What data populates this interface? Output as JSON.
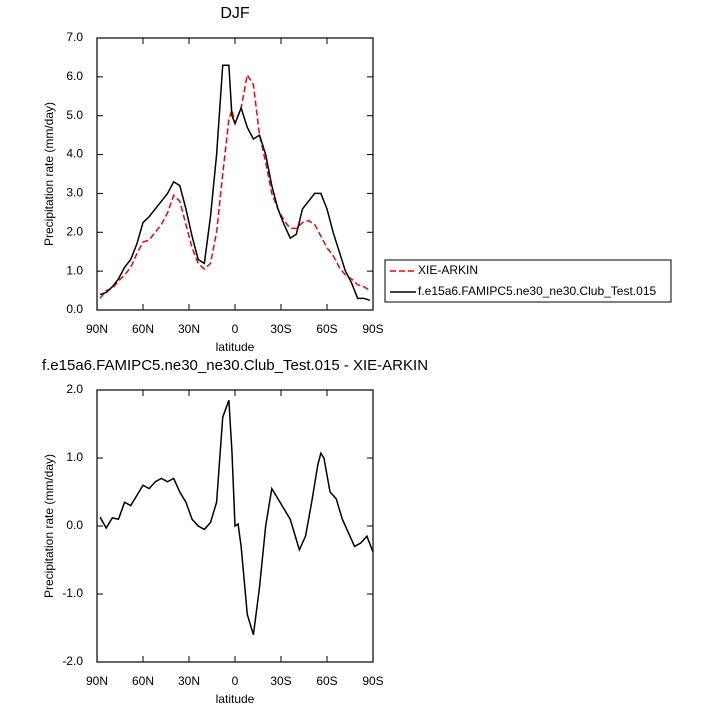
{
  "chart_data": [
    {
      "type": "line",
      "title": "DJF",
      "xlabel": "latitude",
      "ylabel": "Precipitation rate (mm/day)",
      "x": [
        88,
        84,
        80,
        76,
        72,
        68,
        64,
        60,
        56,
        52,
        48,
        44,
        40,
        36,
        32,
        28,
        24,
        20,
        16,
        12,
        8,
        4,
        2,
        0,
        -4,
        -8,
        -12,
        -16,
        -20,
        -24,
        -28,
        -32,
        -36,
        -40,
        -44,
        -48,
        -52,
        -56,
        -60,
        -64,
        -68,
        -72,
        -76,
        -80,
        -84,
        -88
      ],
      "series": [
        {
          "name": "XIE-ARKIN",
          "color": "#ff0000",
          "dashed": true,
          "values": [
            0.3,
            0.5,
            0.55,
            0.75,
            0.9,
            1.1,
            1.45,
            1.75,
            1.8,
            2.0,
            2.2,
            2.5,
            2.95,
            2.8,
            2.2,
            1.6,
            1.2,
            1.05,
            1.2,
            2.0,
            3.5,
            4.9,
            5.15,
            4.8,
            5.2,
            6.05,
            5.8,
            4.5,
            3.8,
            3.0,
            2.6,
            2.3,
            2.1,
            2.1,
            2.25,
            2.3,
            2.2,
            1.9,
            1.6,
            1.4,
            1.1,
            0.9,
            0.8,
            0.65,
            0.6,
            0.5
          ]
        },
        {
          "name": "f.e15a6.FAMIPC5.ne30_ne30.Club_Test.015",
          "color": "#000000",
          "dashed": false,
          "values": [
            0.4,
            0.45,
            0.6,
            0.8,
            1.1,
            1.3,
            1.7,
            2.25,
            2.4,
            2.6,
            2.8,
            3.0,
            3.3,
            3.2,
            2.6,
            1.9,
            1.3,
            1.2,
            2.4,
            4.0,
            6.3,
            6.3,
            5.0,
            4.8,
            5.2,
            4.7,
            4.4,
            4.5,
            4.0,
            3.2,
            2.6,
            2.2,
            1.85,
            1.95,
            2.6,
            2.8,
            3.0,
            3.0,
            2.6,
            2.0,
            1.5,
            1.0,
            0.7,
            0.3,
            0.3,
            0.25
          ]
        }
      ],
      "xlim": [
        90,
        -90
      ],
      "xticks": [
        {
          "value": 90,
          "label": "90N"
        },
        {
          "value": 60,
          "label": "60N"
        },
        {
          "value": 30,
          "label": "30N"
        },
        0,
        {
          "value": -30,
          "label": "30S"
        },
        {
          "value": -60,
          "label": "60S"
        },
        {
          "value": -90,
          "label": "90S"
        }
      ],
      "ylim": [
        0,
        7
      ],
      "yticks": [
        {
          "value": 0,
          "label": "0.0"
        },
        {
          "value": 1,
          "label": "1.0"
        },
        {
          "value": 2,
          "label": "2.0"
        },
        {
          "value": 3,
          "label": "3.0"
        },
        {
          "value": 4,
          "label": "4.0"
        },
        {
          "value": 5,
          "label": "5.0"
        },
        {
          "value": 6,
          "label": "6.0"
        },
        {
          "value": 7,
          "label": "7.0"
        }
      ],
      "legend": "right"
    },
    {
      "type": "line",
      "title": "f.e15a6.FAMIPC5.ne30_ne30.Club_Test.015 - XIE-ARKIN",
      "xlabel": "latitude",
      "ylabel": "Precipitation rate (mm/day)",
      "x": [
        88,
        84,
        80,
        76,
        72,
        68,
        64,
        60,
        56,
        52,
        48,
        44,
        40,
        36,
        32,
        28,
        24,
        20,
        16,
        12,
        8,
        4,
        2,
        0,
        -2,
        -4,
        -8,
        -12,
        -16,
        -20,
        -24,
        -28,
        -32,
        -36,
        -40,
        -42,
        -46,
        -50,
        -54,
        -56,
        -58,
        -62,
        -66,
        -70,
        -74,
        -78,
        -82,
        -86,
        -90
      ],
      "series": [
        {
          "color": "#000000",
          "dashed": false,
          "values": [
            0.13,
            -0.03,
            0.12,
            0.1,
            0.35,
            0.3,
            0.45,
            0.6,
            0.55,
            0.65,
            0.7,
            0.65,
            0.7,
            0.5,
            0.35,
            0.1,
            0.0,
            -0.05,
            0.05,
            0.35,
            1.6,
            1.85,
            1.1,
            0.0,
            0.03,
            -0.3,
            -1.3,
            -1.6,
            -0.9,
            0.0,
            0.55,
            0.4,
            0.25,
            0.1,
            -0.2,
            -0.35,
            -0.15,
            0.35,
            0.9,
            1.07,
            1.0,
            0.5,
            0.4,
            0.1,
            -0.1,
            -0.3,
            -0.25,
            -0.15,
            -0.38
          ]
        }
      ],
      "xlim": [
        90,
        -90
      ],
      "xticks": [
        {
          "value": 90,
          "label": "90N"
        },
        {
          "value": 60,
          "label": "60N"
        },
        {
          "value": 30,
          "label": "30N"
        },
        0,
        {
          "value": -30,
          "label": "30S"
        },
        {
          "value": -60,
          "label": "60S"
        },
        {
          "value": -90,
          "label": "90S"
        }
      ],
      "ylim": [
        -2,
        2
      ],
      "yticks": [
        {
          "value": -2,
          "label": "-2.0"
        },
        {
          "value": -1,
          "label": "-1.0"
        },
        {
          "value": 0,
          "label": "0.0"
        },
        {
          "value": 1,
          "label": "1.0"
        },
        {
          "value": 2,
          "label": "2.0"
        }
      ]
    }
  ]
}
